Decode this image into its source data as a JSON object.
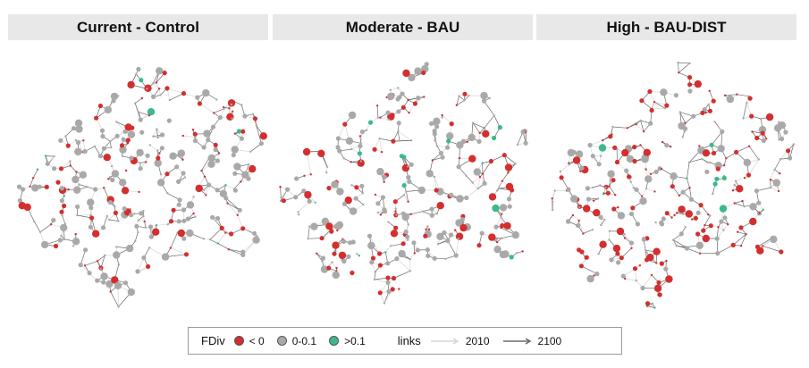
{
  "panels": [
    {
      "id": "current",
      "title": "Current - Control",
      "red_fraction": 0.34,
      "green_fraction": 0.03,
      "seed": 11
    },
    {
      "id": "moderate",
      "title": "Moderate - BAU",
      "red_fraction": 0.3,
      "green_fraction": 0.05,
      "seed": 23
    },
    {
      "id": "high",
      "title": "High - BAU-DIST",
      "red_fraction": 0.55,
      "green_fraction": 0.04,
      "seed": 37
    }
  ],
  "legend": {
    "fdiv_title": "FDiv",
    "categories": [
      {
        "label": "< 0",
        "color": "#d32f2f"
      },
      {
        "label": "0-0.1",
        "color": "#a9a9a9"
      },
      {
        "label": ">0.1",
        "color": "#3cb98a"
      }
    ],
    "links_title": "links",
    "links": [
      {
        "label": "2010",
        "color": "#d6d6d6"
      },
      {
        "label": "2100",
        "color": "#6a6a6a"
      }
    ]
  }
}
